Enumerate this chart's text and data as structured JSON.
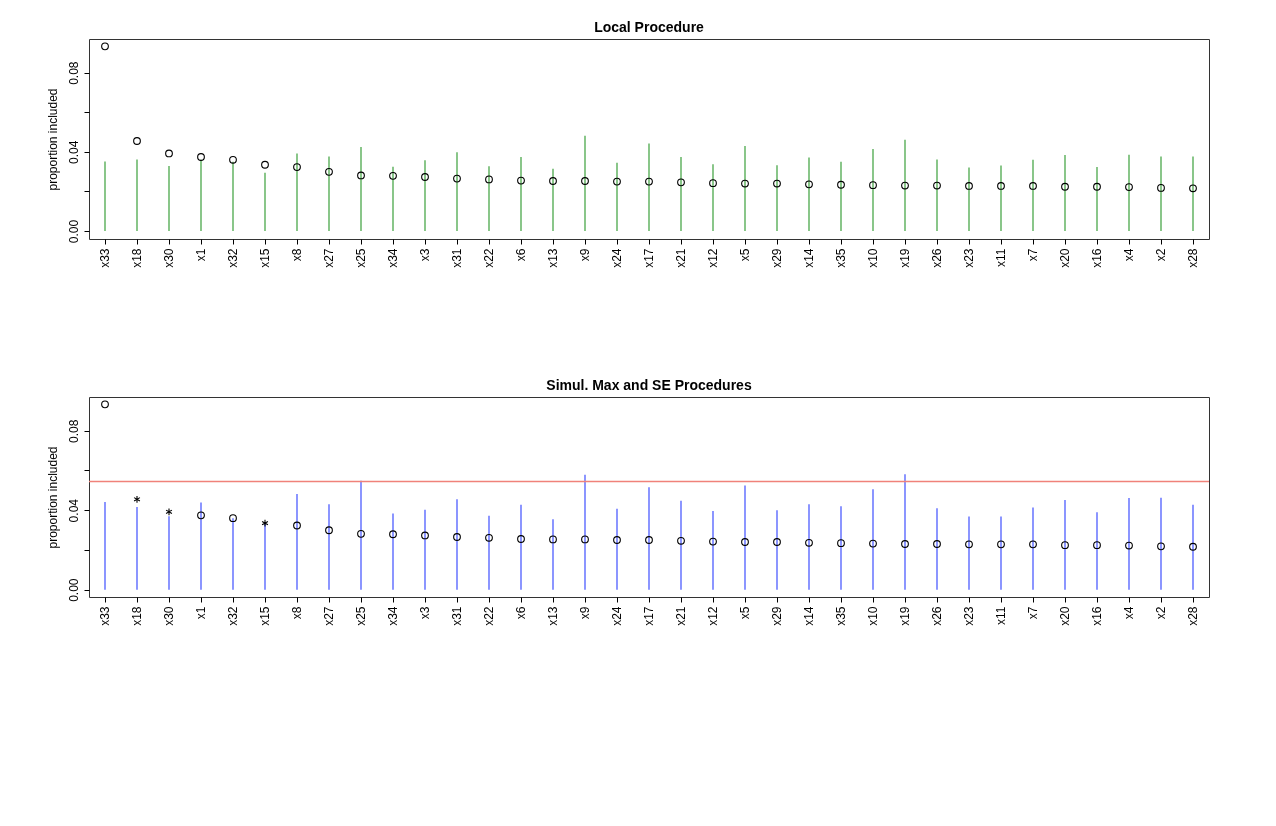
{
  "chart_data": [
    {
      "type": "bar",
      "title": "Local Procedure",
      "ylabel": "proportion included",
      "categories": [
        "x33",
        "x18",
        "x30",
        "x1",
        "x32",
        "x15",
        "x8",
        "x27",
        "x25",
        "x34",
        "x3",
        "x31",
        "x22",
        "x6",
        "x13",
        "x9",
        "x24",
        "x17",
        "x21",
        "x12",
        "x5",
        "x29",
        "x14",
        "x35",
        "x10",
        "x19",
        "x26",
        "x23",
        "x11",
        "x7",
        "x20",
        "x16",
        "x4",
        "x2",
        "x28"
      ],
      "ylim": [
        -0.004,
        0.097
      ],
      "yticks": [
        {
          "value": 0,
          "label": "0.00"
        },
        {
          "value": 0.02,
          "label": null
        },
        {
          "value": 0.04,
          "label": "0.04"
        },
        {
          "value": 0.06,
          "label": null
        },
        {
          "value": 0.08,
          "label": "0.08"
        }
      ],
      "grid": false,
      "series": [
        {
          "color": "#6cb86c",
          "values": [
            0.0352,
            0.0362,
            0.0329,
            0.036,
            0.035,
            0.0295,
            0.0392,
            0.0376,
            0.0424,
            0.0325,
            0.0358,
            0.0398,
            0.0327,
            0.0374,
            0.0315,
            0.0481,
            0.0345,
            0.0442,
            0.0374,
            0.0337,
            0.043,
            0.0333,
            0.0372,
            0.035,
            0.0414,
            0.0461,
            0.0362,
            0.0321,
            0.0331,
            0.036,
            0.0384,
            0.0323,
            0.0386,
            0.0376,
            0.0376
          ]
        },
        {
          "type": "scatter",
          "marker": "circle",
          "color": "#000000",
          "values": [
            0.0933,
            0.0455,
            0.0392,
            0.0374,
            0.036,
            0.0335,
            null,
            null,
            null,
            null,
            null,
            null,
            null,
            null,
            null,
            null,
            null,
            null,
            null,
            null,
            null,
            null,
            null,
            null,
            null,
            null,
            null,
            null,
            null,
            null,
            null,
            null,
            null,
            null,
            null
          ]
        },
        {
          "type": "scatter",
          "marker": "circle",
          "color": "#000000",
          "values": [
            null,
            null,
            null,
            null,
            null,
            null,
            0.0323,
            0.0299,
            0.0281,
            0.0279,
            0.0273,
            0.0265,
            0.0261,
            0.0255,
            0.0253,
            0.0253,
            0.025,
            0.025,
            0.0246,
            0.0242,
            0.024,
            0.024,
            0.0236,
            0.0234,
            0.0232,
            0.023,
            0.023,
            0.0228,
            0.0228,
            0.0228,
            0.0224,
            0.0224,
            0.0222,
            0.0218,
            0.0216
          ]
        }
      ]
    },
    {
      "type": "bar",
      "title": "Simul. Max and SE Procedures",
      "ylabel": "proportion included",
      "categories": [
        "x33",
        "x18",
        "x30",
        "x1",
        "x32",
        "x15",
        "x8",
        "x27",
        "x25",
        "x34",
        "x3",
        "x31",
        "x22",
        "x6",
        "x13",
        "x9",
        "x24",
        "x17",
        "x21",
        "x12",
        "x5",
        "x29",
        "x14",
        "x35",
        "x10",
        "x19",
        "x26",
        "x23",
        "x11",
        "x7",
        "x20",
        "x16",
        "x4",
        "x2",
        "x28"
      ],
      "ylim": [
        -0.0037,
        0.097
      ],
      "yticks": [
        {
          "value": 0,
          "label": "0.00"
        },
        {
          "value": 0.02,
          "label": null
        },
        {
          "value": 0.04,
          "label": "0.04"
        },
        {
          "value": 0.06,
          "label": null
        },
        {
          "value": 0.08,
          "label": "0.08"
        }
      ],
      "grid": false,
      "ref_lines": [
        {
          "axis": "y",
          "value": 0.0544,
          "color": "#f0827a"
        }
      ],
      "series": [
        {
          "color": "#6f7bff",
          "values": [
            0.0441,
            0.0416,
            0.037,
            0.0439,
            0.036,
            0.033,
            0.0481,
            0.043,
            0.0548,
            0.0384,
            0.0402,
            0.0455,
            0.0372,
            0.0428,
            0.0355,
            0.0579,
            0.0407,
            0.0516,
            0.0447,
            0.0396,
            0.0524,
            0.04,
            0.043,
            0.042,
            0.0506,
            0.0581,
            0.041,
            0.0368,
            0.0368,
            0.0414,
            0.0451,
            0.039,
            0.0461,
            0.0463,
            0.0428
          ]
        },
        {
          "type": "scatter",
          "marker": "circle",
          "color": "#000000",
          "values": [
            0.0933,
            null,
            null,
            null,
            null,
            null,
            null,
            null,
            null,
            null,
            null,
            null,
            null,
            null,
            null,
            null,
            null,
            null,
            null,
            null,
            null,
            null,
            null,
            null,
            null,
            null,
            null,
            null,
            null,
            null,
            null,
            null,
            null,
            null,
            null
          ]
        },
        {
          "type": "scatter",
          "marker": "cross",
          "color": "#000000",
          "values": [
            null,
            0.0455,
            0.0392,
            null,
            null,
            0.0335,
            null,
            null,
            null,
            null,
            null,
            null,
            null,
            null,
            null,
            null,
            null,
            null,
            null,
            null,
            null,
            null,
            null,
            null,
            null,
            null,
            null,
            null,
            null,
            null,
            null,
            null,
            null,
            null,
            null
          ]
        },
        {
          "type": "scatter",
          "marker": "circle",
          "color": "#000000",
          "values": [
            null,
            null,
            null,
            0.0374,
            0.036,
            null,
            0.0323,
            0.0299,
            0.0281,
            0.0279,
            0.0273,
            0.0265,
            0.0261,
            0.0255,
            0.0253,
            0.0253,
            0.025,
            0.025,
            0.0246,
            0.0242,
            0.024,
            0.024,
            0.0236,
            0.0234,
            0.0232,
            0.023,
            0.023,
            0.0228,
            0.0228,
            0.0228,
            0.0224,
            0.0224,
            0.0222,
            0.0218,
            0.0216
          ]
        }
      ]
    }
  ]
}
